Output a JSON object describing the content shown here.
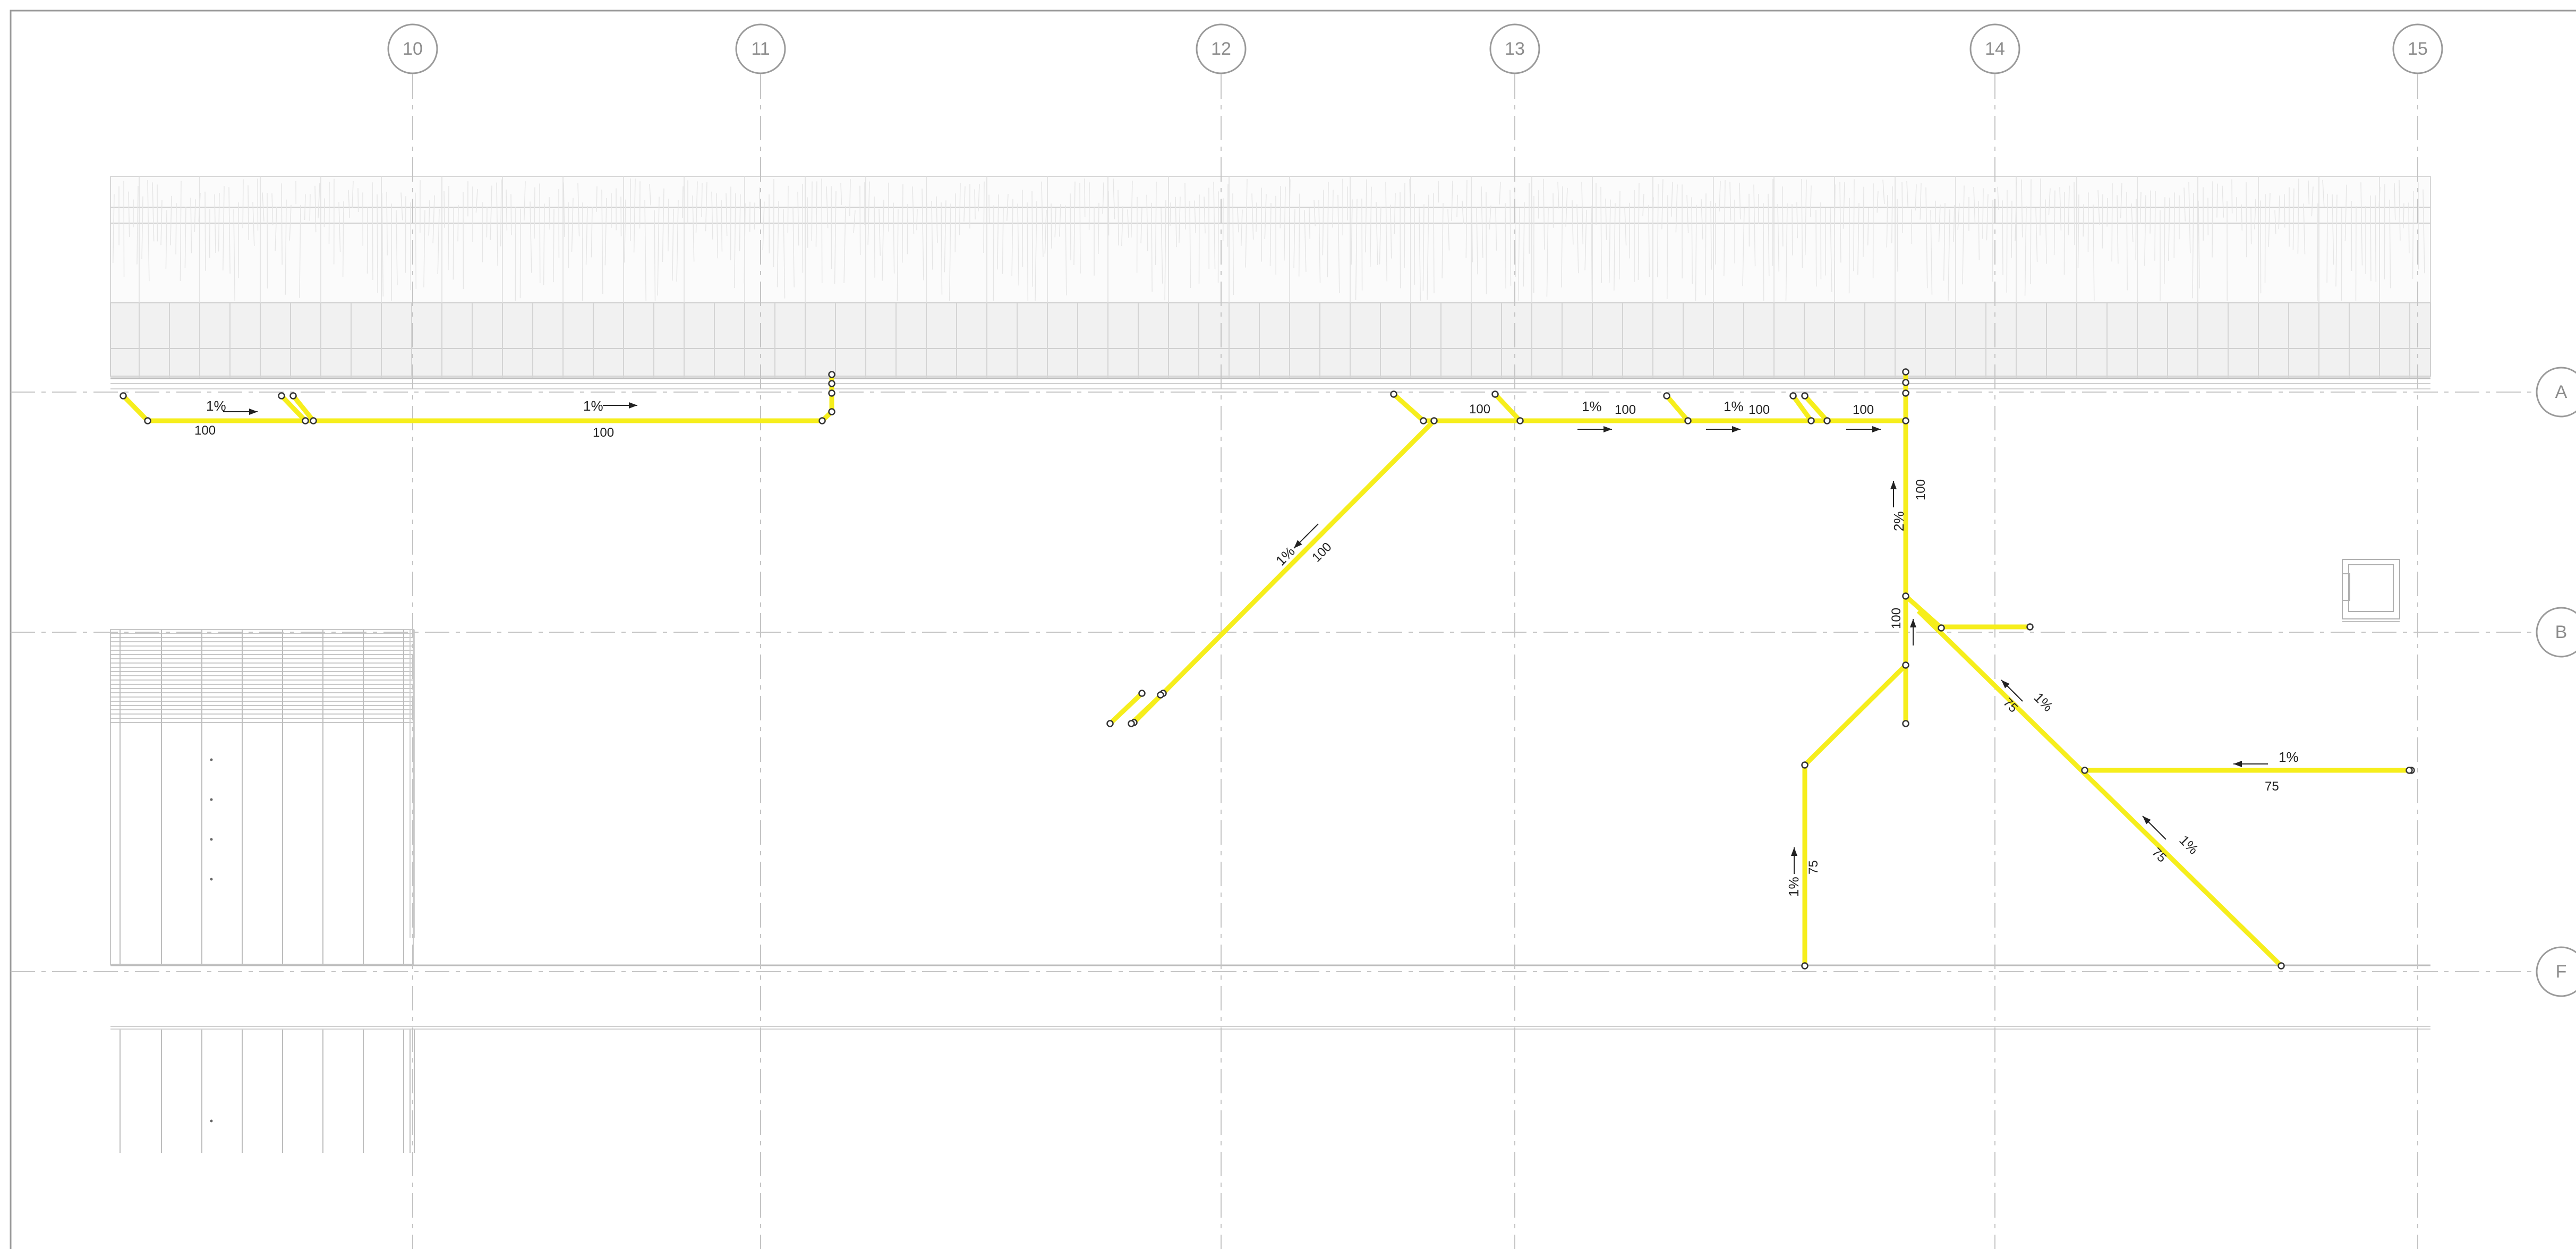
{
  "grid": {
    "columns": [
      "10",
      "11",
      "12",
      "13",
      "14",
      "15"
    ],
    "rows": [
      "A",
      "B",
      "F"
    ]
  },
  "colors": {
    "pipe": "#f6ee1c",
    "grid_line": "#c4c4c4",
    "annotation": "#222222"
  },
  "pipe_notes": [
    {
      "id": "n1",
      "text": "1%"
    },
    {
      "id": "n2",
      "text": "100"
    },
    {
      "id": "n3",
      "text": "1%"
    },
    {
      "id": "n4",
      "text": "100"
    },
    {
      "id": "n5",
      "text": "100"
    },
    {
      "id": "n6",
      "text": "1%"
    },
    {
      "id": "n7",
      "text": "100"
    },
    {
      "id": "n8",
      "text": "1%"
    },
    {
      "id": "n9",
      "text": "100"
    },
    {
      "id": "n10",
      "text": "100"
    },
    {
      "id": "n11",
      "text": "1%"
    },
    {
      "id": "n12",
      "text": "100"
    },
    {
      "id": "n13",
      "text": "2%"
    },
    {
      "id": "n14",
      "text": "100"
    },
    {
      "id": "n15",
      "text": "100"
    },
    {
      "id": "n16",
      "text": "1%"
    },
    {
      "id": "n17",
      "text": "75"
    },
    {
      "id": "n18",
      "text": "1%"
    },
    {
      "id": "n19",
      "text": "75"
    },
    {
      "id": "n20",
      "text": "1%"
    },
    {
      "id": "n21",
      "text": "75"
    },
    {
      "id": "n22",
      "text": "1%"
    },
    {
      "id": "n23",
      "text": "75"
    }
  ]
}
